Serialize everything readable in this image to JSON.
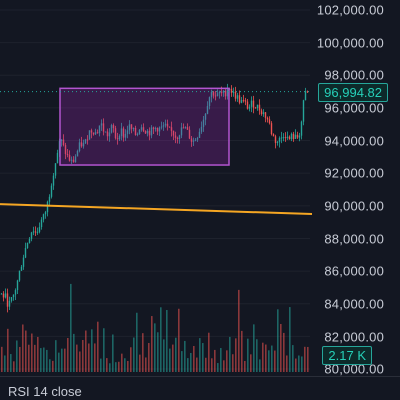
{
  "price_axis": {
    "ticks": [
      "102,000.00",
      "100,000.00",
      "98,000.00",
      "96,000.00",
      "94,000.00",
      "92,000.00",
      "90,000.00",
      "88,000.00",
      "86,000.00",
      "84,000.00",
      "82,000.00",
      "80,000.00"
    ]
  },
  "last_price": "96,994.82",
  "last_volume": "2.17 K",
  "rsi_label": "RSI 14 close",
  "colors": {
    "up": "#26a69a",
    "down": "#ef5350",
    "rect": "#9c27b0",
    "line": "#f5a623",
    "bg": "#131722"
  },
  "chart_data": {
    "type": "candlestick",
    "ylim": [
      80000,
      103000
    ],
    "price_range_box": [
      92500,
      97200
    ],
    "horizontal_line": [
      90100,
      89500
    ],
    "last_price": 96994.82,
    "last_volume_k": 2.17
  }
}
